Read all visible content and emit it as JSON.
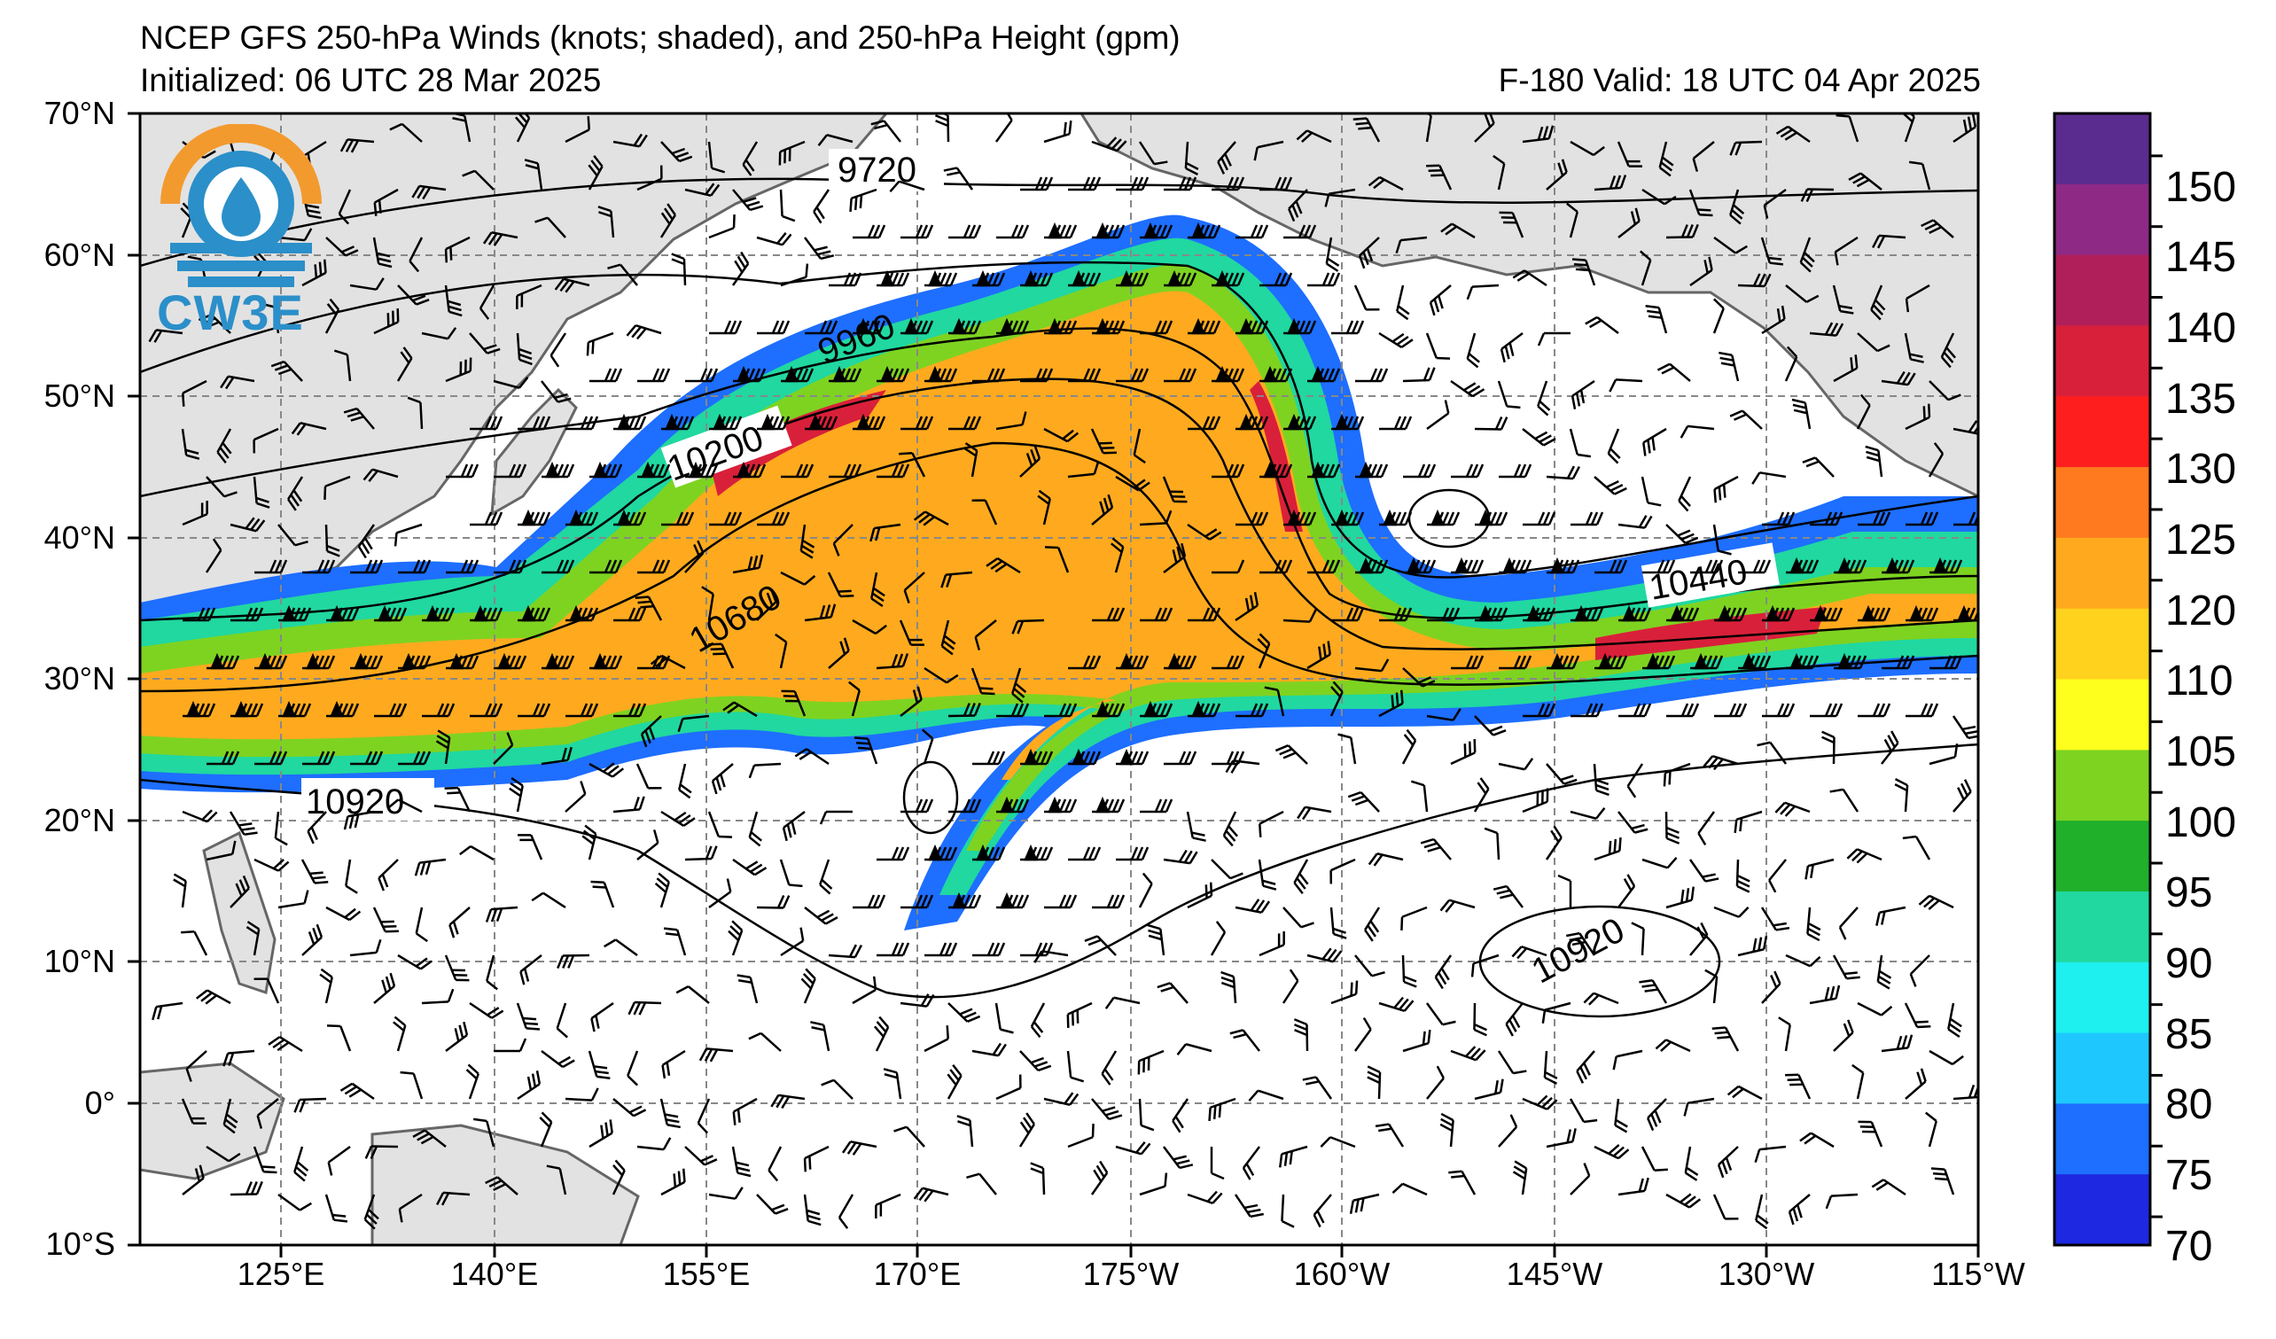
{
  "header": {
    "title": "NCEP GFS 250-hPa Winds (knots; shaded), and 250-hPa Height (gpm)",
    "init": "Initialized: 06 UTC 28 Mar 2025",
    "valid": "F-180  Valid: 18 UTC 04 Apr 2025"
  },
  "logo": {
    "text": "CW3E",
    "icon": "cw3e-logo-icon"
  },
  "axes": {
    "lat_labels": [
      "70°N",
      "60°N",
      "50°N",
      "40°N",
      "30°N",
      "20°N",
      "10°N",
      "0°",
      "10°S"
    ],
    "lon_labels": [
      "125°E",
      "140°E",
      "155°E",
      "170°E",
      "175°W",
      "160°W",
      "145°W",
      "130°W",
      "115°W"
    ]
  },
  "colorbar": {
    "labels": [
      "150",
      "145",
      "140",
      "135",
      "130",
      "125",
      "120",
      "110",
      "105",
      "100",
      "95",
      "90",
      "85",
      "80",
      "75",
      "70"
    ],
    "colors": [
      "#5b2c8f",
      "#8e2a86",
      "#b11f5a",
      "#d9203a",
      "#ff1e1e",
      "#ff7a1e",
      "#ffaa1e",
      "#ffd21e",
      "#ffff1e",
      "#7ed321",
      "#20b02a",
      "#20d8a0",
      "#1ef0f0",
      "#1ec8ff",
      "#1e6eff",
      "#1e28e0"
    ]
  },
  "contours": {
    "labels": [
      "9720",
      "9960",
      "10200",
      "10440",
      "10680",
      "10920",
      "10920"
    ]
  },
  "wind_speed_units": "knots"
}
